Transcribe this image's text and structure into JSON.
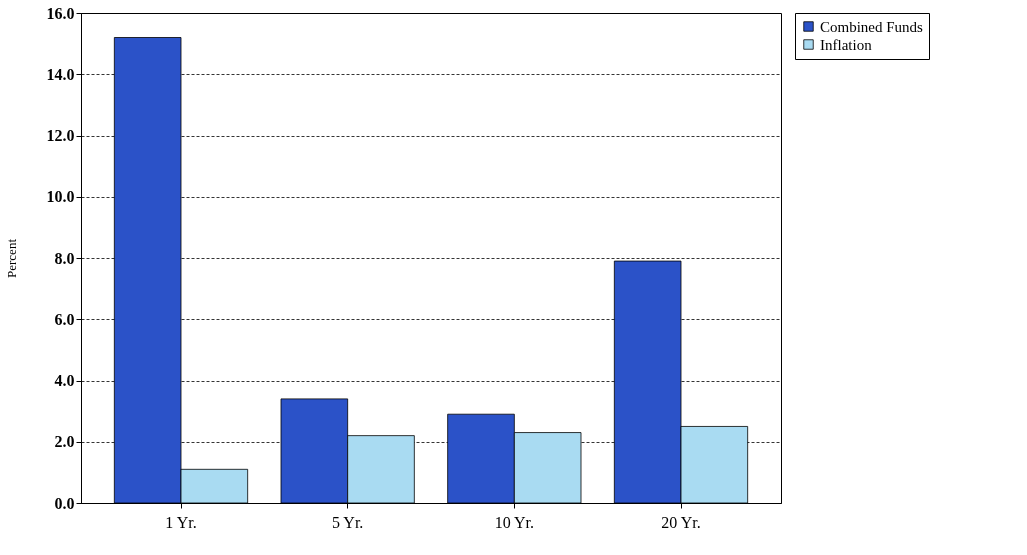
{
  "chart_data": {
    "type": "bar",
    "ylabel": "Percent",
    "categories": [
      "1 Yr.",
      "5 Yr.",
      "10 Yr.",
      "20 Yr."
    ],
    "series": [
      {
        "name": "Combined Funds",
        "color": "#2b52c8",
        "values": [
          15.2,
          3.4,
          2.9,
          7.9
        ]
      },
      {
        "name": "Inflation",
        "color": "#a9dbf2",
        "values": [
          1.1,
          2.2,
          2.3,
          2.5
        ]
      }
    ],
    "ylim": [
      0,
      16
    ],
    "yticks": [
      {
        "value": 0,
        "label": "0.0"
      },
      {
        "value": 2,
        "label": "2.0"
      },
      {
        "value": 4,
        "label": "4.0"
      },
      {
        "value": 6,
        "label": "6.0"
      },
      {
        "value": 8,
        "label": "8.0"
      },
      {
        "value": 10,
        "label": "10.0"
      },
      {
        "value": 12,
        "label": "12.0"
      },
      {
        "value": 14,
        "label": "14.0"
      },
      {
        "value": 16,
        "label": "16.0"
      }
    ],
    "grid": "y",
    "legend": "right"
  }
}
